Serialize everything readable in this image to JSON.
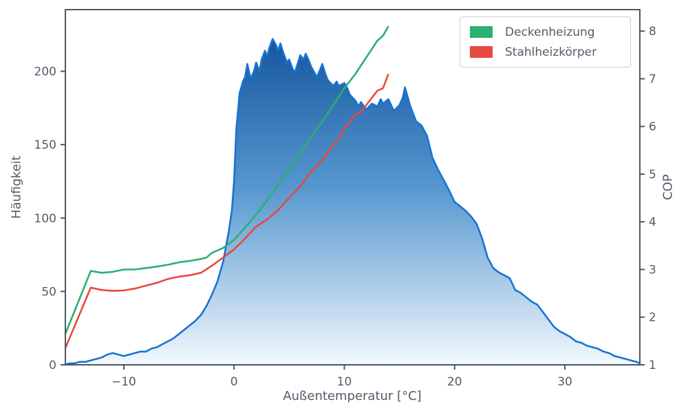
{
  "figure": {
    "background": "#ffffff",
    "text_color": "#525c68",
    "spine_color": "#4c5561"
  },
  "chart_data": {
    "type": "area",
    "title": "",
    "xlabel": "Außentemperatur [°C]",
    "ylabel_left": "Häufigkeit",
    "ylabel_right": "COP",
    "xlim": [
      -15.3,
      36.8
    ],
    "ylim_left": [
      0,
      242
    ],
    "ylim_right": [
      1,
      8.45
    ],
    "grid": false,
    "xticks": [
      -10,
      0,
      10,
      20,
      30
    ],
    "xtick_labels": [
      "−10",
      "0",
      "10",
      "20",
      "30"
    ],
    "yticks_left": [
      0,
      50,
      100,
      150,
      200
    ],
    "yticks_right": [
      1,
      2,
      3,
      4,
      5,
      6,
      7,
      8
    ],
    "legend": {
      "position": "upper right",
      "entries": [
        "Deckenheizung",
        "Stahlheizkörper"
      ]
    },
    "histogram": {
      "name": "Häufigkeit (Außentemperatur)",
      "axis": "left",
      "color": "#1873d3",
      "fill_gradient": [
        "#084a94",
        "#5697cf",
        "#f2f8fd"
      ],
      "x": [
        -15.3,
        -15,
        -14.5,
        -14,
        -13.5,
        -13,
        -12.5,
        -12,
        -11.5,
        -11,
        -10.5,
        -10,
        -9.5,
        -9,
        -8.5,
        -8,
        -7.5,
        -7,
        -6.5,
        -6,
        -5.5,
        -5,
        -4.5,
        -4,
        -3.5,
        -3,
        -2.5,
        -2,
        -1.5,
        -1,
        -0.5,
        -0.2,
        0,
        0.2,
        0.5,
        0.8,
        1,
        1.2,
        1.5,
        1.8,
        2,
        2.3,
        2.5,
        2.8,
        3,
        3.2,
        3.5,
        3.8,
        4,
        4.2,
        4.5,
        4.8,
        5,
        5.3,
        5.5,
        5.8,
        6,
        6.3,
        6.5,
        6.8,
        7,
        7.3,
        7.5,
        7.8,
        8,
        8.3,
        8.5,
        9,
        9.3,
        9.5,
        10,
        10.3,
        10.5,
        11,
        11.3,
        11.5,
        12,
        12.5,
        13,
        13.3,
        13.5,
        14,
        14.3,
        14.5,
        15,
        15.3,
        15.5,
        16,
        16.5,
        17,
        17.5,
        18,
        18.5,
        19,
        19.5,
        20,
        20.5,
        21,
        21.5,
        22,
        22.5,
        23,
        23.5,
        24,
        24.5,
        25,
        25.5,
        26,
        26.5,
        27,
        27.5,
        28,
        28.5,
        29,
        29.5,
        30,
        30.5,
        31,
        31.5,
        32,
        32.5,
        33,
        33.5,
        34,
        34.5,
        35,
        35.5,
        36,
        36.5,
        36.8
      ],
      "y": [
        0,
        1,
        1,
        2,
        2,
        3,
        4,
        5,
        7,
        8,
        7,
        6,
        7,
        8,
        9,
        9,
        11,
        12,
        14,
        16,
        18,
        21,
        24,
        27,
        30,
        34,
        40,
        48,
        57,
        70,
        90,
        105,
        125,
        160,
        185,
        193,
        196,
        205,
        195,
        200,
        206,
        200,
        208,
        214,
        210,
        216,
        222,
        218,
        214,
        219,
        212,
        206,
        208,
        202,
        199,
        206,
        211,
        208,
        212,
        207,
        203,
        199,
        196,
        201,
        205,
        198,
        194,
        190,
        193,
        190,
        192,
        188,
        184,
        180,
        176,
        179,
        174,
        178,
        176,
        181,
        178,
        181,
        176,
        173,
        177,
        182,
        189,
        176,
        166,
        163,
        156,
        141,
        133,
        126,
        119,
        111,
        108,
        105,
        101,
        96,
        86,
        73,
        66,
        63,
        61,
        59,
        51,
        49,
        46,
        43,
        41,
        36,
        31,
        26,
        23,
        21,
        19,
        16,
        15,
        13,
        12,
        11,
        9,
        8,
        6,
        5,
        4,
        3,
        2,
        1
      ]
    },
    "series": [
      {
        "name": "Deckenheizung",
        "axis": "right",
        "color": "#2ab071",
        "x": [
          -15.3,
          -13,
          -12,
          -11,
          -10,
          -9,
          -8,
          -7,
          -6,
          -5,
          -4,
          -3,
          -2.5,
          -2,
          -1,
          0,
          1,
          2,
          3,
          4,
          5,
          6,
          7,
          8,
          9,
          10,
          11,
          12,
          13,
          13.5,
          14
        ],
        "y": [
          1.65,
          2.97,
          2.93,
          2.95,
          3.0,
          3.0,
          3.03,
          3.06,
          3.1,
          3.15,
          3.18,
          3.22,
          3.25,
          3.35,
          3.45,
          3.62,
          3.88,
          4.15,
          4.45,
          4.78,
          5.1,
          5.45,
          5.78,
          6.1,
          6.45,
          6.8,
          7.1,
          7.45,
          7.8,
          7.9,
          8.1
        ]
      },
      {
        "name": "Stahlheizkörper",
        "axis": "right",
        "color": "#e74840",
        "x": [
          -15.3,
          -13,
          -12,
          -11,
          -10,
          -9,
          -8,
          -7,
          -6,
          -5,
          -4,
          -3,
          -2,
          -1,
          0,
          1,
          2,
          3,
          4,
          5,
          6,
          7,
          8,
          9,
          9.5,
          10,
          10.5,
          11,
          11.5,
          12,
          12.5,
          13,
          13.5,
          14
        ],
        "y": [
          1.35,
          2.62,
          2.57,
          2.55,
          2.56,
          2.6,
          2.66,
          2.72,
          2.8,
          2.85,
          2.88,
          2.93,
          3.08,
          3.25,
          3.42,
          3.65,
          3.9,
          4.05,
          4.25,
          4.5,
          4.75,
          5.05,
          5.3,
          5.6,
          5.75,
          5.95,
          6.1,
          6.25,
          6.3,
          6.45,
          6.6,
          6.75,
          6.8,
          7.1
        ]
      }
    ]
  }
}
